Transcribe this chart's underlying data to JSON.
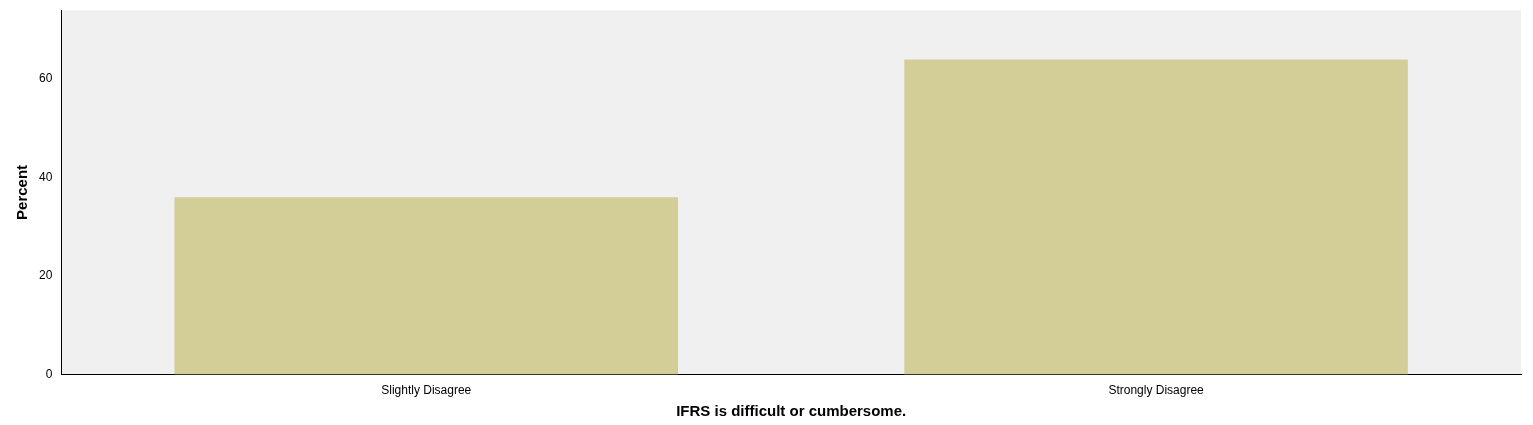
{
  "chart_data": {
    "type": "bar",
    "xlabel": "IFRS is difficult or cumbersome.",
    "ylabel": "Percent",
    "categories": [
      "Slightly Disagree",
      "Strongly Disagree"
    ],
    "values": [
      36,
      64
    ],
    "color": "#d3ce97",
    "ylim": [
      0,
      74
    ],
    "yticks": [
      0,
      20,
      40,
      60
    ],
    "grid": false,
    "legend": false
  }
}
